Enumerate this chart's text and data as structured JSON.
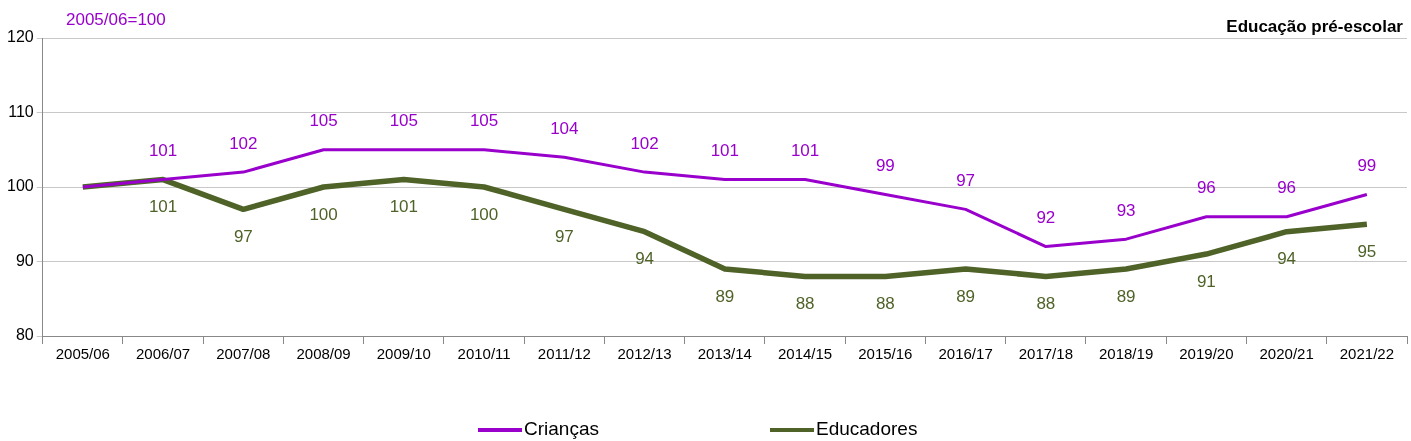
{
  "chart_data": {
    "type": "line",
    "title": "Educação pré-escolar",
    "annotations": [
      "2005/06=100"
    ],
    "categories": [
      "2005/06",
      "2006/07",
      "2007/08",
      "2008/09",
      "2009/10",
      "2010/11",
      "2011/12",
      "2012/13",
      "2013/14",
      "2014/15",
      "2015/16",
      "2016/17",
      "2017/18",
      "2018/19",
      "2019/20",
      "2020/21",
      "2021/22"
    ],
    "series": [
      {
        "name": "Crianças",
        "color": "#9900cc",
        "values": [
          100,
          101,
          102,
          105,
          105,
          105,
          104,
          102,
          101,
          101,
          99,
          97,
          92,
          93,
          96,
          96,
          99
        ],
        "value_labels": [
          null,
          "101",
          "102",
          "105",
          "105",
          "105",
          "104",
          "102",
          "101",
          "101",
          "99",
          "97",
          "92",
          "93",
          "96",
          "96",
          "99"
        ]
      },
      {
        "name": "Educadores",
        "color": "#4f6228",
        "values": [
          100,
          101,
          97,
          100,
          101,
          100,
          97,
          94,
          89,
          88,
          88,
          89,
          88,
          89,
          91,
          94,
          95
        ],
        "value_labels": [
          null,
          "101",
          "97",
          "100",
          "101",
          "100",
          "97",
          "94",
          "89",
          "88",
          "88",
          "89",
          "88",
          "89",
          "91",
          "94",
          "95"
        ]
      }
    ],
    "ylim": [
      80,
      120
    ],
    "yticks": [
      80,
      90,
      100,
      110,
      120
    ],
    "grid": "y",
    "legend": "bottom",
    "marker": "none",
    "line_style": "solid"
  }
}
